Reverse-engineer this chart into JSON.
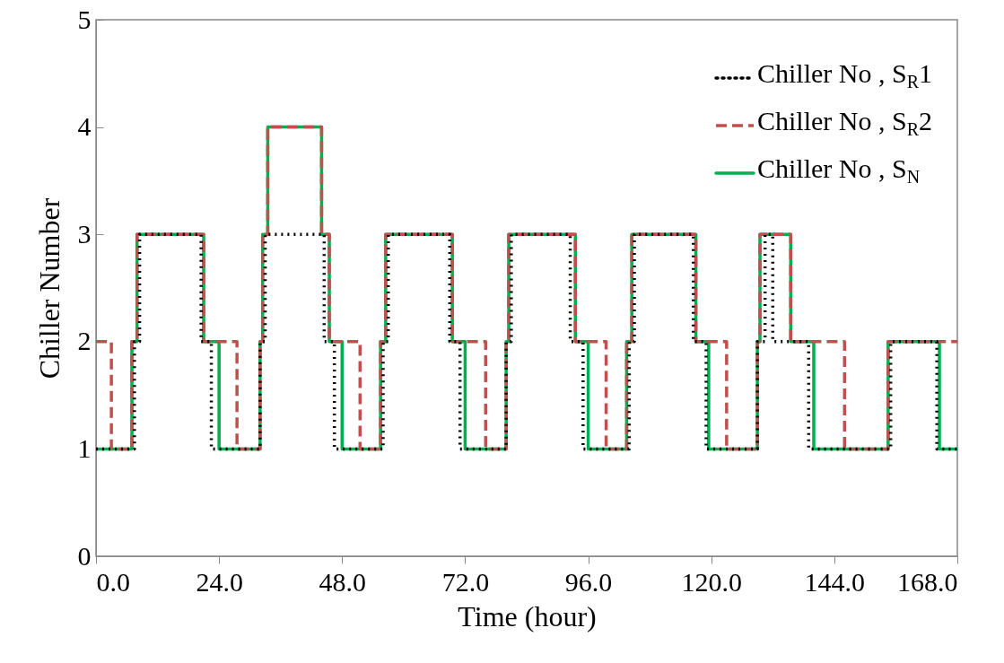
{
  "chart_data": {
    "type": "step",
    "xlabel": "Time (hour)",
    "ylabel": "Chiller Number",
    "xlim": [
      0,
      168
    ],
    "xticks": [
      {
        "value": 0,
        "label": "0.0"
      },
      {
        "value": 24,
        "label": "24.0"
      },
      {
        "value": 48,
        "label": "48.0"
      },
      {
        "value": 72,
        "label": "72.0"
      },
      {
        "value": 96,
        "label": "96.0"
      },
      {
        "value": 120,
        "label": "120.0"
      },
      {
        "value": 144,
        "label": "144.0"
      },
      {
        "value": 168,
        "label": "168.0"
      }
    ],
    "ylim": [
      0,
      5
    ],
    "yticks": [
      0,
      1,
      2,
      3,
      4,
      5
    ],
    "grid": false,
    "legend": "top right",
    "marker": "none",
    "series": [
      {
        "name": "Chiller No , S$_{R}$1",
        "color": "#000000",
        "line_style": "dotted",
        "x": [
          0,
          7.5,
          8.5,
          20.5,
          22.5,
          32,
          33,
          44.5,
          46.5,
          56,
          57,
          69,
          71,
          80,
          81,
          92.5,
          95,
          104,
          105,
          116.5,
          119,
          129,
          130.5,
          132,
          139,
          155,
          164,
          168
        ],
        "values": [
          1,
          2,
          3,
          2,
          1,
          2,
          3,
          2,
          1,
          2,
          3,
          2,
          1,
          2,
          3,
          2,
          1,
          2,
          3,
          2,
          1,
          2,
          3,
          2,
          1,
          2,
          1,
          1
        ]
      },
      {
        "name": "Chiller No , S$_{R}$2",
        "color": "#c0504d",
        "line_style": "dashed",
        "x": [
          0,
          3,
          7,
          8,
          21,
          27.5,
          32,
          32.5,
          33.5,
          44,
          45.5,
          51.5,
          55.5,
          56.5,
          69.5,
          76,
          80,
          80.5,
          93.5,
          99.5,
          103.5,
          104.5,
          117,
          123,
          129,
          129.5,
          135.5,
          146,
          154.5,
          168
        ],
        "values": [
          2,
          1,
          2,
          3,
          2,
          1,
          2,
          3,
          4,
          3,
          2,
          1,
          2,
          3,
          2,
          1,
          2,
          3,
          2,
          1,
          2,
          3,
          2,
          1,
          2,
          3,
          2,
          1,
          2,
          2
        ]
      },
      {
        "name": "Chiller No , S$_{N}$",
        "color": "#00b050",
        "line_style": "solid",
        "x": [
          0,
          7,
          8,
          21,
          24,
          32,
          32.5,
          33.5,
          44,
          45.5,
          48,
          55.5,
          56.5,
          69.5,
          72,
          80,
          80.5,
          93.5,
          96,
          103.5,
          104.5,
          117,
          119.5,
          129,
          129.5,
          135.5,
          140,
          154.5,
          164.5,
          168
        ],
        "values": [
          1,
          2,
          3,
          2,
          1,
          2,
          3,
          4,
          3,
          2,
          1,
          2,
          3,
          2,
          1,
          2,
          3,
          2,
          1,
          2,
          3,
          2,
          1,
          2,
          3,
          2,
          1,
          2,
          1,
          1
        ]
      }
    ]
  }
}
